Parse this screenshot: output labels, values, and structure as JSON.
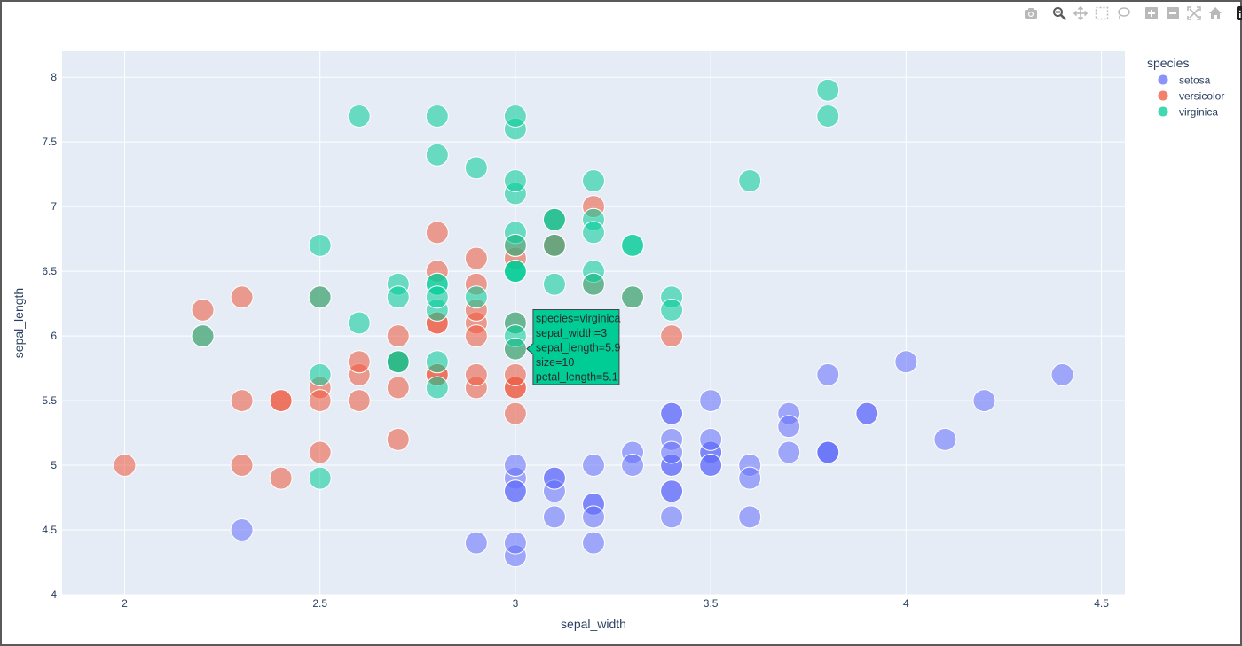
{
  "modebar": {
    "buttons": [
      "camera-icon",
      "zoom-icon",
      "pan-icon",
      "box-select-icon",
      "lasso-icon",
      "zoom-in-icon",
      "zoom-out-icon",
      "autoscale-icon",
      "reset-axes-icon",
      "plotly-logo-icon"
    ],
    "colors": {
      "inactive": "#b9b9b9",
      "active": "#5a5a5a",
      "logo_bg": "#1f1f1f"
    }
  },
  "chart_data": {
    "type": "scatter",
    "xlabel": "sepal_width",
    "ylabel": "sepal_length",
    "xlim": [
      1.84,
      4.56
    ],
    "ylim": [
      4.0,
      8.2
    ],
    "x_ticks": [
      "2",
      "2.5",
      "3",
      "3.5",
      "4",
      "4.5"
    ],
    "x_tick_values": [
      2,
      2.5,
      3,
      3.5,
      4,
      4.5
    ],
    "y_ticks": [
      "4",
      "4.5",
      "5",
      "5.5",
      "6",
      "6.5",
      "7",
      "7.5",
      "8"
    ],
    "y_tick_values": [
      4,
      4.5,
      5,
      5.5,
      6,
      6.5,
      7,
      7.5,
      8
    ],
    "grid": true,
    "plot_bg": "#e5ecf6",
    "legend": {
      "title": "species",
      "placement": "top-right"
    },
    "series": [
      {
        "name": "setosa",
        "color": "#636efa",
        "points": [
          [
            3.5,
            5.1
          ],
          [
            3.0,
            4.9
          ],
          [
            3.2,
            4.7
          ],
          [
            3.1,
            4.6
          ],
          [
            3.6,
            5.0
          ],
          [
            3.9,
            5.4
          ],
          [
            3.4,
            4.6
          ],
          [
            3.4,
            5.0
          ],
          [
            2.9,
            4.4
          ],
          [
            3.1,
            4.9
          ],
          [
            3.7,
            5.4
          ],
          [
            3.4,
            4.8
          ],
          [
            3.0,
            4.8
          ],
          [
            3.0,
            4.3
          ],
          [
            4.0,
            5.8
          ],
          [
            4.4,
            5.7
          ],
          [
            3.9,
            5.4
          ],
          [
            3.5,
            5.1
          ],
          [
            3.8,
            5.7
          ],
          [
            3.8,
            5.1
          ],
          [
            3.4,
            5.4
          ],
          [
            3.7,
            5.1
          ],
          [
            3.6,
            4.6
          ],
          [
            3.3,
            5.1
          ],
          [
            3.4,
            4.8
          ],
          [
            3.0,
            5.0
          ],
          [
            3.4,
            5.0
          ],
          [
            3.5,
            5.2
          ],
          [
            3.4,
            5.2
          ],
          [
            3.2,
            4.7
          ],
          [
            3.1,
            4.8
          ],
          [
            3.4,
            5.4
          ],
          [
            4.1,
            5.2
          ],
          [
            4.2,
            5.5
          ],
          [
            3.1,
            4.9
          ],
          [
            3.2,
            5.0
          ],
          [
            3.5,
            5.5
          ],
          [
            3.6,
            4.9
          ],
          [
            3.0,
            4.4
          ],
          [
            3.4,
            5.1
          ],
          [
            3.5,
            5.0
          ],
          [
            2.3,
            4.5
          ],
          [
            3.2,
            4.4
          ],
          [
            3.5,
            5.0
          ],
          [
            3.8,
            5.1
          ],
          [
            3.0,
            4.8
          ],
          [
            3.8,
            5.1
          ],
          [
            3.2,
            4.6
          ],
          [
            3.7,
            5.3
          ],
          [
            3.3,
            5.0
          ]
        ]
      },
      {
        "name": "versicolor",
        "color": "#ef553b",
        "points": [
          [
            3.2,
            7.0
          ],
          [
            3.2,
            6.4
          ],
          [
            3.1,
            6.9
          ],
          [
            2.3,
            5.5
          ],
          [
            2.8,
            6.5
          ],
          [
            2.8,
            5.7
          ],
          [
            3.3,
            6.3
          ],
          [
            2.4,
            4.9
          ],
          [
            2.9,
            6.6
          ],
          [
            2.7,
            5.2
          ],
          [
            2.0,
            5.0
          ],
          [
            3.0,
            5.9
          ],
          [
            2.2,
            6.0
          ],
          [
            2.9,
            6.1
          ],
          [
            2.9,
            5.6
          ],
          [
            3.1,
            6.7
          ],
          [
            3.0,
            5.6
          ],
          [
            2.7,
            5.8
          ],
          [
            2.2,
            6.2
          ],
          [
            2.5,
            5.6
          ],
          [
            3.2,
            5.9
          ],
          [
            2.8,
            6.1
          ],
          [
            2.5,
            6.3
          ],
          [
            2.8,
            6.1
          ],
          [
            2.9,
            6.4
          ],
          [
            3.0,
            6.6
          ],
          [
            2.8,
            6.8
          ],
          [
            3.0,
            6.7
          ],
          [
            2.9,
            6.0
          ],
          [
            2.6,
            5.7
          ],
          [
            2.4,
            5.5
          ],
          [
            2.4,
            5.5
          ],
          [
            2.7,
            5.8
          ],
          [
            2.7,
            6.0
          ],
          [
            3.0,
            5.4
          ],
          [
            3.4,
            6.0
          ],
          [
            3.1,
            6.7
          ],
          [
            2.3,
            6.3
          ],
          [
            3.0,
            5.6
          ],
          [
            2.5,
            5.5
          ],
          [
            2.6,
            5.5
          ],
          [
            3.0,
            6.1
          ],
          [
            2.6,
            5.8
          ],
          [
            2.3,
            5.0
          ],
          [
            2.7,
            5.6
          ],
          [
            3.0,
            5.7
          ],
          [
            2.9,
            5.7
          ],
          [
            2.9,
            6.2
          ],
          [
            2.5,
            5.1
          ],
          [
            2.8,
            5.7
          ]
        ]
      },
      {
        "name": "virginica",
        "color": "#00cc96",
        "points": [
          [
            3.3,
            6.3
          ],
          [
            2.7,
            5.8
          ],
          [
            3.0,
            7.1
          ],
          [
            2.9,
            6.3
          ],
          [
            3.0,
            6.5
          ],
          [
            3.0,
            7.6
          ],
          [
            2.5,
            4.9
          ],
          [
            2.9,
            7.3
          ],
          [
            2.5,
            6.7
          ],
          [
            3.6,
            7.2
          ],
          [
            3.2,
            6.5
          ],
          [
            2.7,
            6.4
          ],
          [
            3.0,
            6.8
          ],
          [
            2.5,
            5.7
          ],
          [
            2.8,
            5.8
          ],
          [
            3.2,
            6.4
          ],
          [
            3.0,
            6.5
          ],
          [
            3.8,
            7.7
          ],
          [
            2.6,
            7.7
          ],
          [
            2.2,
            6.0
          ],
          [
            3.2,
            6.9
          ],
          [
            2.8,
            5.6
          ],
          [
            2.8,
            7.7
          ],
          [
            2.7,
            6.3
          ],
          [
            3.3,
            6.7
          ],
          [
            3.2,
            7.2
          ],
          [
            2.8,
            6.2
          ],
          [
            3.0,
            6.1
          ],
          [
            2.8,
            6.4
          ],
          [
            3.0,
            7.2
          ],
          [
            2.8,
            7.4
          ],
          [
            3.8,
            7.9
          ],
          [
            2.8,
            6.4
          ],
          [
            2.8,
            6.3
          ],
          [
            2.6,
            6.1
          ],
          [
            3.0,
            7.7
          ],
          [
            3.4,
            6.3
          ],
          [
            3.1,
            6.4
          ],
          [
            3.0,
            6.0
          ],
          [
            3.1,
            6.9
          ],
          [
            3.1,
            6.7
          ],
          [
            3.1,
            6.9
          ],
          [
            2.7,
            5.8
          ],
          [
            3.2,
            6.8
          ],
          [
            3.3,
            6.7
          ],
          [
            3.0,
            6.7
          ],
          [
            2.5,
            6.3
          ],
          [
            3.0,
            6.5
          ],
          [
            3.4,
            6.2
          ],
          [
            3.0,
            5.9
          ]
        ]
      }
    ],
    "hover": {
      "series": "virginica",
      "x": 3.0,
      "y": 5.9,
      "lines": [
        "species=virginica",
        "sepal_width=3",
        "sepal_length=5.9",
        "size=10",
        "petal_length=5.1"
      ]
    }
  }
}
